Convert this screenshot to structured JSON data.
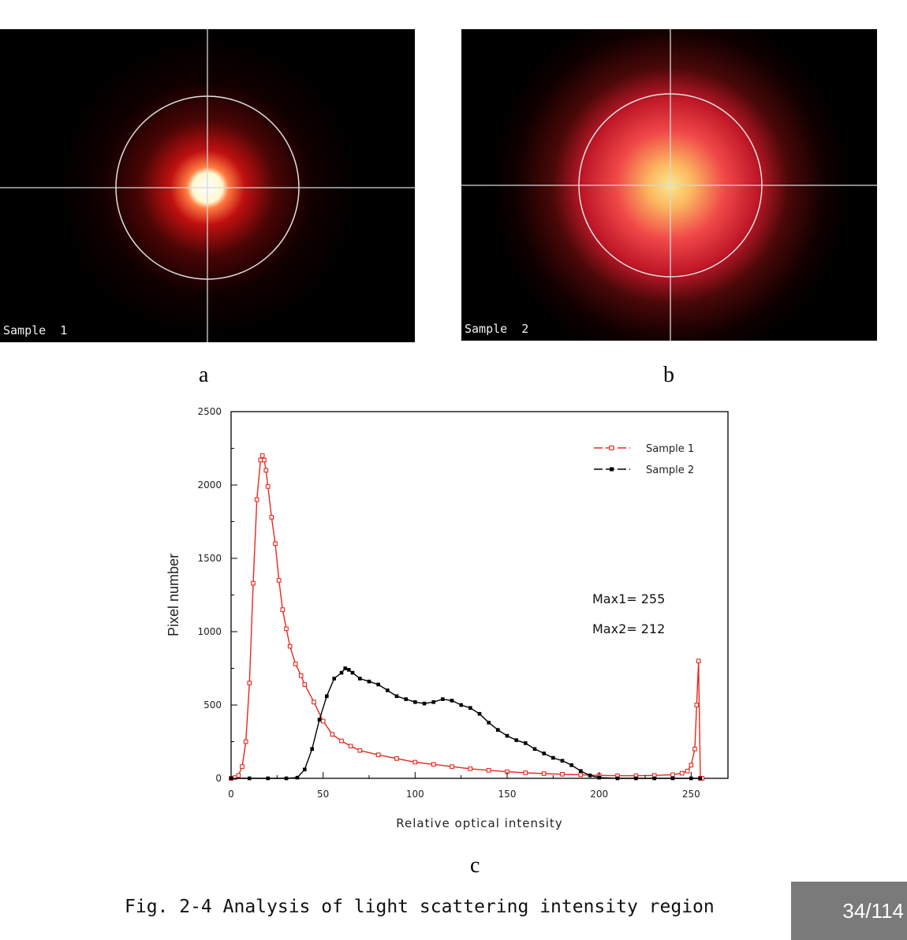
{
  "figure": {
    "panel_a": {
      "label": "Sample  1",
      "letter": "a"
    },
    "panel_b": {
      "label": "Sample  2",
      "letter": "b"
    },
    "panel_c_letter": "c",
    "caption": "Fig. 2-4 Analysis of light scattering intensity region"
  },
  "page_indicator": "34/114",
  "colors": {
    "sample1": "#e8281e",
    "sample2": "#000000"
  },
  "chart_data": {
    "type": "line",
    "title": "",
    "xlabel": "Relative optical intensity",
    "ylabel": "Pixel number",
    "xlim": [
      0,
      270
    ],
    "ylim": [
      0,
      2500
    ],
    "xticks": [
      0,
      50,
      100,
      150,
      200,
      250
    ],
    "yticks": [
      0,
      500,
      1000,
      1500,
      2000,
      2500
    ],
    "legend_position": "top-right",
    "annotations": [
      "Max1= 255",
      "Max2= 212"
    ],
    "series": [
      {
        "name": "Sample 1",
        "color": "#e8281e",
        "marker": "open-square",
        "x": [
          0,
          2,
          4,
          6,
          8,
          10,
          12,
          14,
          16,
          17,
          18,
          19,
          20,
          22,
          24,
          26,
          28,
          30,
          32,
          35,
          38,
          40,
          45,
          50,
          55,
          60,
          65,
          70,
          80,
          90,
          100,
          110,
          120,
          130,
          140,
          150,
          160,
          170,
          180,
          190,
          200,
          210,
          220,
          230,
          240,
          245,
          248,
          250,
          252,
          253,
          254,
          255,
          256
        ],
        "y": [
          0,
          5,
          20,
          80,
          250,
          650,
          1330,
          1900,
          2170,
          2200,
          2170,
          2100,
          1990,
          1780,
          1600,
          1350,
          1150,
          1020,
          900,
          780,
          700,
          640,
          520,
          390,
          300,
          255,
          220,
          190,
          160,
          135,
          110,
          95,
          80,
          65,
          55,
          45,
          38,
          32,
          28,
          24,
          20,
          18,
          18,
          20,
          25,
          35,
          50,
          90,
          200,
          500,
          800,
          0,
          0
        ]
      },
      {
        "name": "Sample 2",
        "color": "#000000",
        "marker": "filled-square",
        "x": [
          0,
          10,
          20,
          30,
          36,
          40,
          44,
          48,
          52,
          56,
          60,
          62,
          64,
          66,
          70,
          75,
          80,
          85,
          90,
          95,
          100,
          105,
          110,
          115,
          120,
          125,
          130,
          135,
          140,
          145,
          150,
          155,
          160,
          165,
          170,
          175,
          180,
          185,
          190,
          195,
          200,
          210,
          220,
          230,
          240,
          250,
          255
        ],
        "y": [
          0,
          0,
          0,
          0,
          5,
          60,
          200,
          400,
          560,
          680,
          720,
          750,
          740,
          720,
          680,
          660,
          640,
          600,
          560,
          540,
          520,
          510,
          520,
          540,
          530,
          500,
          480,
          440,
          380,
          330,
          290,
          260,
          240,
          200,
          170,
          140,
          120,
          90,
          50,
          20,
          5,
          0,
          0,
          0,
          0,
          0,
          0
        ]
      }
    ]
  }
}
